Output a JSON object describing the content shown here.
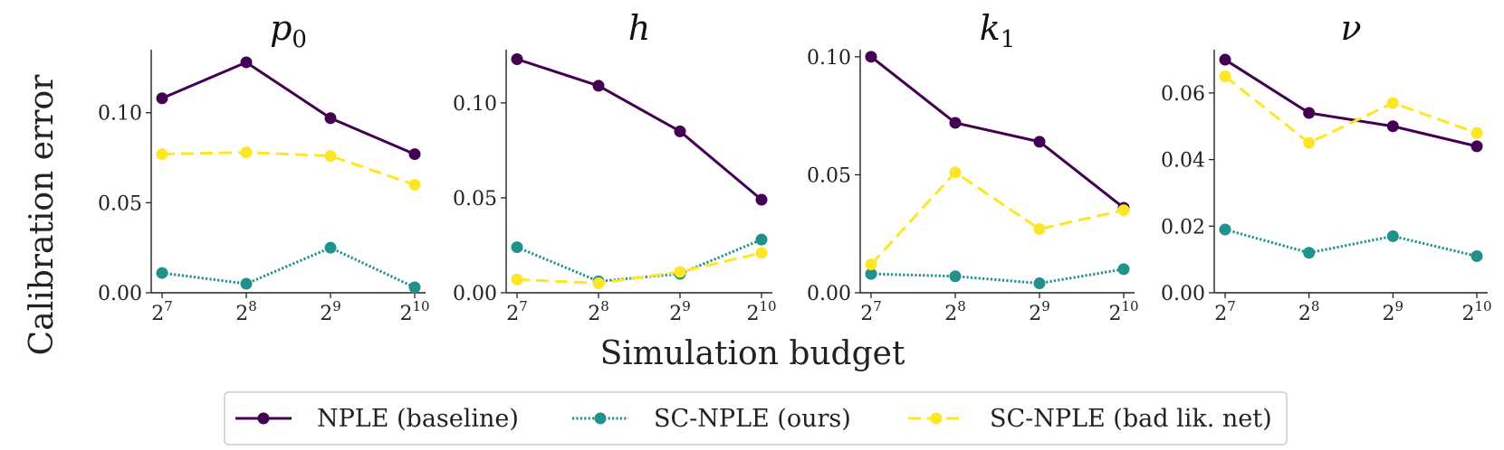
{
  "figure": {
    "ylabel": "Calibration error",
    "xlabel": "Simulation budget"
  },
  "chart_data": {
    "type": "line",
    "x": [
      7,
      8,
      9,
      10
    ],
    "x_tick_base": "2",
    "x_tick_exponents": [
      "7",
      "8",
      "9",
      "10"
    ],
    "legend_position": "bottom-center",
    "grid": false,
    "series_styles": [
      {
        "name": "NPLE (baseline)",
        "color": "#440154",
        "dash": "solid"
      },
      {
        "name": "SC-NPLE (ours)",
        "color": "#21918c",
        "dash": "dotted"
      },
      {
        "name": "SC-NPLE (bad lik. net)",
        "color": "#fde725",
        "dash": "dashed"
      }
    ],
    "panels": [
      {
        "title_base": "p",
        "title_sub": "0",
        "ylim": [
          0,
          0.135
        ],
        "yticks": [
          0.0,
          0.05,
          0.1
        ],
        "ytick_labels": [
          "0.00",
          "0.05",
          "0.10"
        ],
        "series": [
          {
            "name": "NPLE (baseline)",
            "values": [
              0.108,
              0.128,
              0.097,
              0.077
            ]
          },
          {
            "name": "SC-NPLE (ours)",
            "values": [
              0.011,
              0.005,
              0.025,
              0.003
            ]
          },
          {
            "name": "SC-NPLE (bad lik. net)",
            "values": [
              0.077,
              0.078,
              0.076,
              0.06
            ]
          }
        ]
      },
      {
        "title_base": "h",
        "title_sub": "",
        "ylim": [
          0,
          0.128
        ],
        "yticks": [
          0.0,
          0.05,
          0.1
        ],
        "ytick_labels": [
          "0.00",
          "0.05",
          "0.10"
        ],
        "series": [
          {
            "name": "NPLE (baseline)",
            "values": [
              0.123,
              0.109,
              0.085,
              0.049
            ]
          },
          {
            "name": "SC-NPLE (ours)",
            "values": [
              0.024,
              0.006,
              0.01,
              0.028
            ]
          },
          {
            "name": "SC-NPLE (bad lik. net)",
            "values": [
              0.007,
              0.005,
              0.011,
              0.021
            ]
          }
        ]
      },
      {
        "title_base": "k",
        "title_sub": "1",
        "ylim": [
          0,
          0.103
        ],
        "yticks": [
          0.0,
          0.05,
          0.1
        ],
        "ytick_labels": [
          "0.00",
          "0.05",
          "0.10"
        ],
        "series": [
          {
            "name": "NPLE (baseline)",
            "values": [
              0.1,
              0.072,
              0.064,
              0.036
            ]
          },
          {
            "name": "SC-NPLE (ours)",
            "values": [
              0.008,
              0.007,
              0.004,
              0.01
            ]
          },
          {
            "name": "SC-NPLE (bad lik. net)",
            "values": [
              0.012,
              0.051,
              0.027,
              0.035
            ]
          }
        ]
      },
      {
        "title_base": "ν",
        "title_sub": "",
        "ylim": [
          0,
          0.073
        ],
        "yticks": [
          0.0,
          0.02,
          0.04,
          0.06
        ],
        "ytick_labels": [
          "0.00",
          "0.02",
          "0.04",
          "0.06"
        ],
        "series": [
          {
            "name": "NPLE (baseline)",
            "values": [
              0.07,
              0.054,
              0.05,
              0.044
            ]
          },
          {
            "name": "SC-NPLE (ours)",
            "values": [
              0.019,
              0.012,
              0.017,
              0.011
            ]
          },
          {
            "name": "SC-NPLE (bad lik. net)",
            "values": [
              0.065,
              0.045,
              0.057,
              0.048
            ]
          }
        ]
      }
    ]
  },
  "legend": {
    "items": [
      {
        "label": "NPLE (baseline)"
      },
      {
        "label": "SC-NPLE (ours)"
      },
      {
        "label": "SC-NPLE (bad lik. net)"
      }
    ]
  }
}
